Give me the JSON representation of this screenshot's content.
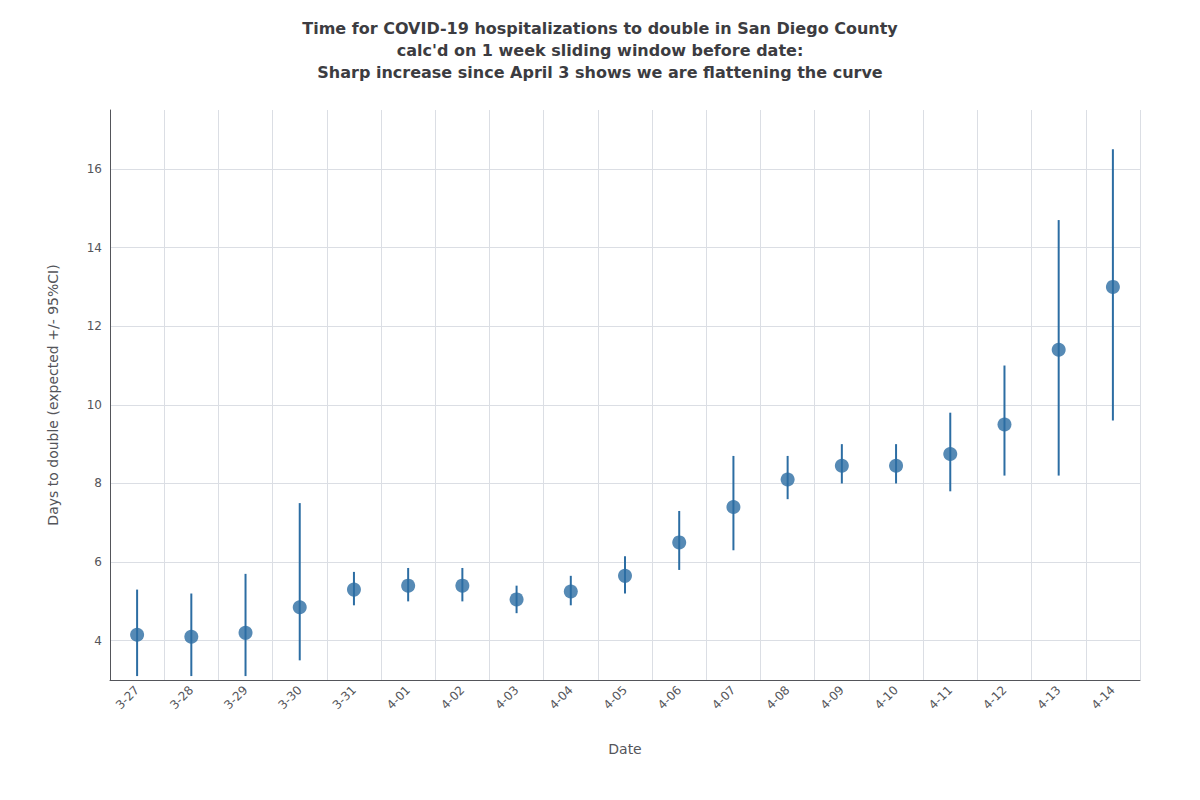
{
  "chart_data": {
    "type": "scatter",
    "title": "Time for COVID-19 hospitalizations to double in San Diego County\ncalc'd on 1 week sliding window before date:\nSharp increase since April 3 shows we are flattening the curve",
    "xlabel": "Date",
    "ylabel": "Days to double (expected +/- 95%CI)",
    "categories": [
      "3-27",
      "3-28",
      "3-29",
      "3-30",
      "3-31",
      "4-01",
      "4-02",
      "4-03",
      "4-04",
      "4-05",
      "4-06",
      "4-07",
      "4-08",
      "4-09",
      "4-10",
      "4-11",
      "4-12",
      "4-13",
      "4-14"
    ],
    "values": [
      4.15,
      4.1,
      4.2,
      4.85,
      5.3,
      5.4,
      5.4,
      5.05,
      5.25,
      5.65,
      6.5,
      7.4,
      8.1,
      8.45,
      8.45,
      8.75,
      9.5,
      11.4,
      13.0
    ],
    "ci_lower": [
      3.1,
      3.1,
      3.1,
      3.5,
      4.9,
      5.0,
      5.0,
      4.7,
      4.9,
      5.2,
      5.8,
      6.3,
      7.6,
      8.0,
      8.0,
      7.8,
      8.2,
      8.2,
      9.6
    ],
    "ci_upper": [
      5.3,
      5.2,
      5.7,
      7.5,
      5.75,
      5.85,
      5.85,
      5.4,
      5.65,
      6.15,
      7.3,
      8.7,
      8.7,
      9.0,
      9.0,
      9.8,
      11.0,
      14.7,
      16.5
    ],
    "color": "#2c6da3",
    "ylim": [
      3.0,
      17.5
    ],
    "yticks": [
      4,
      6,
      8,
      10,
      12,
      14,
      16
    ],
    "grid": true
  }
}
